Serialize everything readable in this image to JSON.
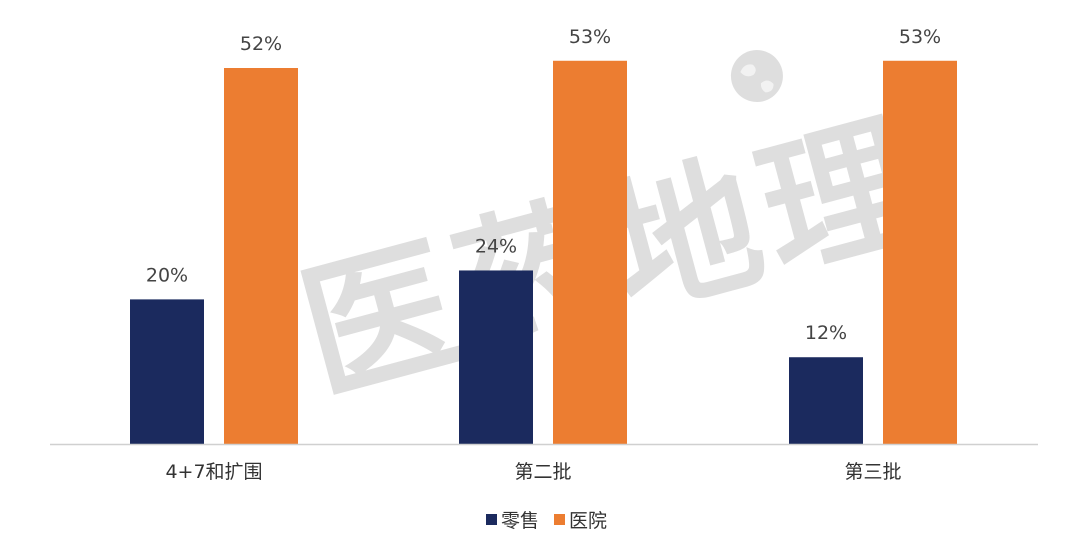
{
  "chart_data": {
    "type": "bar",
    "categories": [
      "4+7和扩围",
      "第二批",
      "第三批"
    ],
    "series": [
      {
        "name": "零售",
        "values": [
          20,
          24,
          12
        ],
        "labels": [
          "20%",
          "24%",
          "12%"
        ],
        "color": "#1b2a5e"
      },
      {
        "name": "医院",
        "values": [
          52,
          53,
          53
        ],
        "labels": [
          "52%",
          "53%",
          "53%"
        ],
        "color": "#ec7d31"
      }
    ],
    "ylim": [
      0,
      60
    ],
    "grid": false,
    "legend_position": "bottom",
    "axis_color": "#d0d0d0"
  },
  "watermark": {
    "text": "医药地理",
    "icon": "globe-icon"
  }
}
